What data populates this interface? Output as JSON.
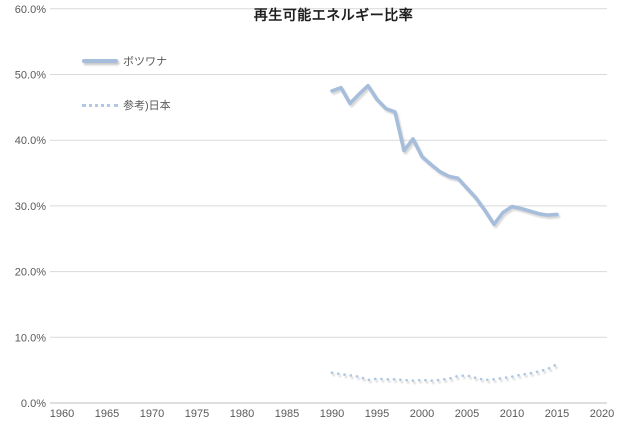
{
  "title": "再生可能エネルギー比率",
  "legend": [
    {
      "label": "ボツワナ",
      "style": "solid"
    },
    {
      "label": "参考)日本",
      "style": "dotted"
    }
  ],
  "colors": {
    "series_botswana": "#a6bedb",
    "series_japan": "#b0c8e2",
    "gridline": "#d9d9d9",
    "axis_line": "#bfbfbf",
    "tick_text": "#595959",
    "title_text": "#1f1f1f",
    "shadow": "#9e9e9e",
    "background": "#ffffff"
  },
  "chart_data": {
    "type": "line",
    "title": "再生可能エネルギー比率",
    "xlabel": "",
    "ylabel": "",
    "grid": true,
    "legend_position": "upper-left-inside",
    "xlim": [
      1958.7,
      2020.6
    ],
    "ylim": [
      0,
      60
    ],
    "x_ticks": [
      1960,
      1965,
      1970,
      1975,
      1980,
      1985,
      1990,
      1995,
      2000,
      2005,
      2010,
      2015,
      2020
    ],
    "y_ticks": [
      {
        "value": 60,
        "label": "60.0%"
      },
      {
        "value": 50,
        "label": "50.0%"
      },
      {
        "value": 40,
        "label": "40.0%"
      },
      {
        "value": 30,
        "label": "30.0%"
      },
      {
        "value": 20,
        "label": "20.0%"
      },
      {
        "value": 10,
        "label": "10.0%"
      },
      {
        "value": 0,
        "label": "0.0%"
      }
    ],
    "x": [
      1990,
      1991,
      1992,
      1993,
      1994,
      1995,
      1996,
      1997,
      1998,
      1999,
      2000,
      2001,
      2002,
      2003,
      2004,
      2005,
      2006,
      2007,
      2008,
      2009,
      2010,
      2011,
      2012,
      2013,
      2014,
      2015
    ],
    "series": [
      {
        "name": "ボツワナ",
        "line_style": "solid",
        "color": "#a6bedb",
        "values": [
          47.5,
          48.0,
          45.6,
          47.0,
          48.3,
          46.2,
          44.8,
          44.3,
          38.4,
          40.2,
          37.5,
          36.3,
          35.2,
          34.5,
          34.2,
          32.7,
          31.2,
          29.3,
          27.2,
          29.0,
          29.9,
          29.6,
          29.2,
          28.8,
          28.6,
          28.7
        ]
      },
      {
        "name": "参考)日本",
        "line_style": "dotted",
        "color": "#b0c8e2",
        "values": [
          4.6,
          4.4,
          4.2,
          4.0,
          3.5,
          3.7,
          3.6,
          3.6,
          3.5,
          3.4,
          3.5,
          3.4,
          3.5,
          3.7,
          4.1,
          4.2,
          3.8,
          3.5,
          3.6,
          3.8,
          4.0,
          4.3,
          4.5,
          4.8,
          5.2,
          5.9
        ]
      }
    ]
  }
}
